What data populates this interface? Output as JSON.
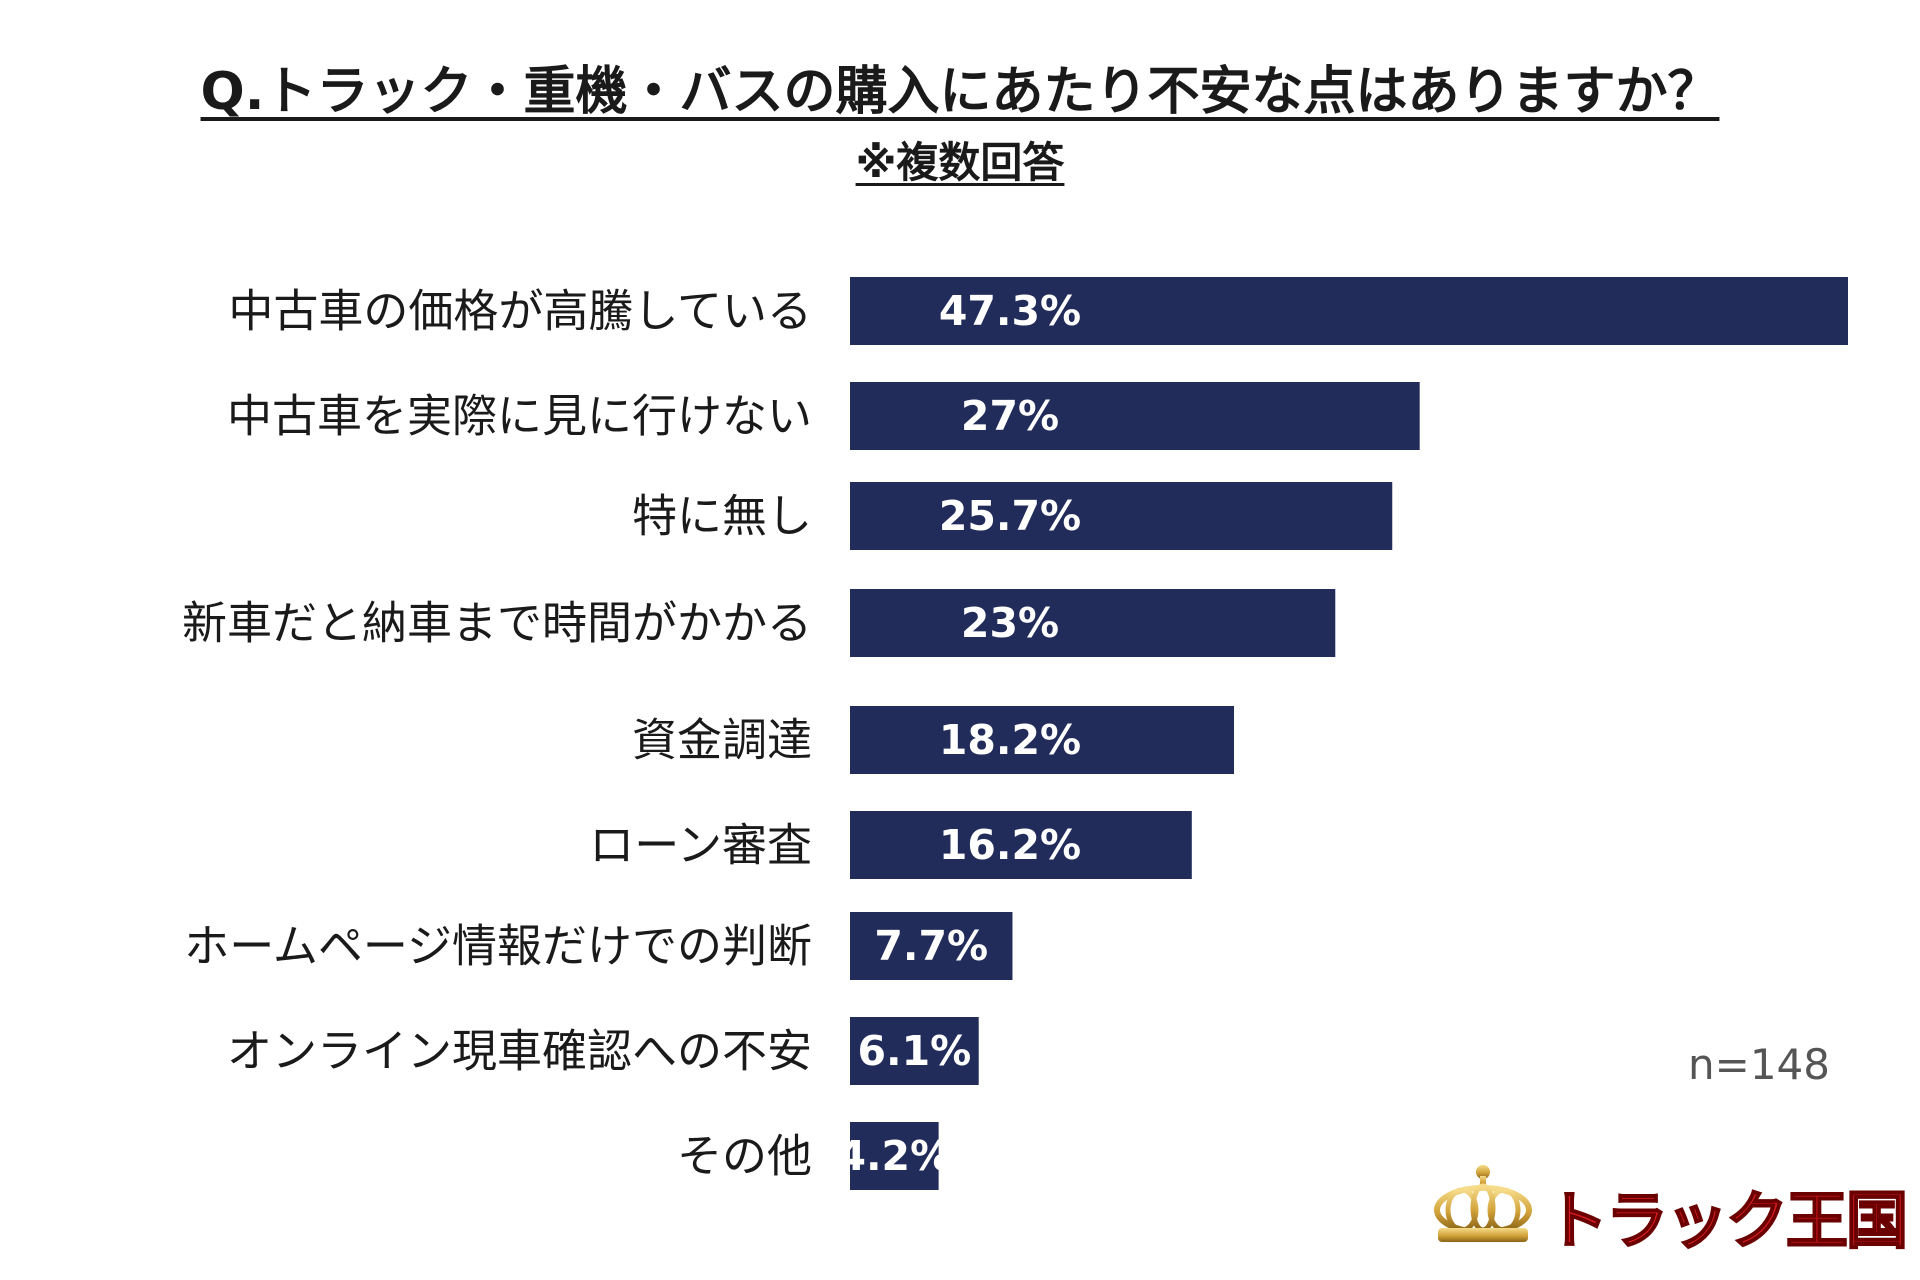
{
  "title": "Q.トラック・重機・バスの購入にあたり不安な点はありますか？",
  "subtitle": "※複数回答",
  "sample_size": "n=148",
  "logo_text": "トラック王国",
  "colors": {
    "bar": "#222c5a",
    "value_text": "#ffffff",
    "logo_red": "#d81c1c",
    "crown_gold": "#d2a23a"
  },
  "chart_data": {
    "type": "bar",
    "orientation": "horizontal",
    "title": "Q.トラック・重機・バスの購入にあたり不安な点はありますか？",
    "categories": [
      "中古車の価格が高騰している",
      "中古車を実際に見に行けない",
      "特に無し",
      "新車だと納車まで時間がかかる",
      "資金調達",
      "ローン審査",
      "ホームページ情報だけでの判断",
      "オンライン現車確認への不安",
      "その他"
    ],
    "values": [
      47.3,
      27,
      25.7,
      23,
      18.2,
      16.2,
      7.7,
      6.1,
      4.2
    ],
    "value_labels": [
      "47.3%",
      "27%",
      "25.7%",
      "23%",
      "18.2%",
      "16.2%",
      "7.7%",
      "6.1%",
      "4.2%"
    ],
    "xlim": [
      0,
      47.3
    ],
    "grid": false
  }
}
